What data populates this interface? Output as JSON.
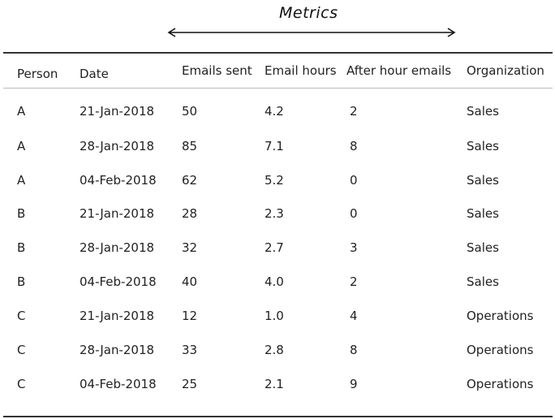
{
  "metrics_label": "Metrics",
  "columns": [
    "Person",
    "Date",
    "Emails sent",
    "Email hours",
    "After hour emails",
    "Organization"
  ],
  "rows": [
    [
      "A",
      "21-Jan-2018",
      "50",
      "4.2",
      "2",
      "Sales"
    ],
    [
      "A",
      "28-Jan-2018",
      "85",
      "7.1",
      "8",
      "Sales"
    ],
    [
      "A",
      "04-Feb-2018",
      "62",
      "5.2",
      "0",
      "Sales"
    ],
    [
      "B",
      "21-Jan-2018",
      "28",
      "2.3",
      "0",
      "Sales"
    ],
    [
      "B",
      "28-Jan-2018",
      "32",
      "2.7",
      "3",
      "Sales"
    ],
    [
      "B",
      "04-Feb-2018",
      "40",
      "4.0",
      "2",
      "Sales"
    ],
    [
      "C",
      "21-Jan-2018",
      "12",
      "1.0",
      "4",
      "Operations"
    ],
    [
      "C",
      "28-Jan-2018",
      "33",
      "2.8",
      "8",
      "Operations"
    ],
    [
      "C",
      "04-Feb-2018",
      "25",
      "2.1",
      "9",
      "Operations"
    ]
  ]
}
